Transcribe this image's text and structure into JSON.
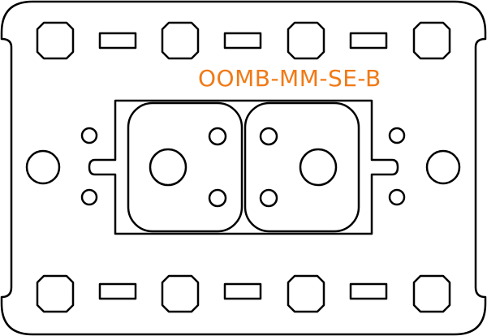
{
  "part": {
    "label": "OOMB-MM-SE-B"
  },
  "colors": {
    "stroke": "#000000",
    "background": "#ffffff",
    "label": "#f07a16"
  }
}
